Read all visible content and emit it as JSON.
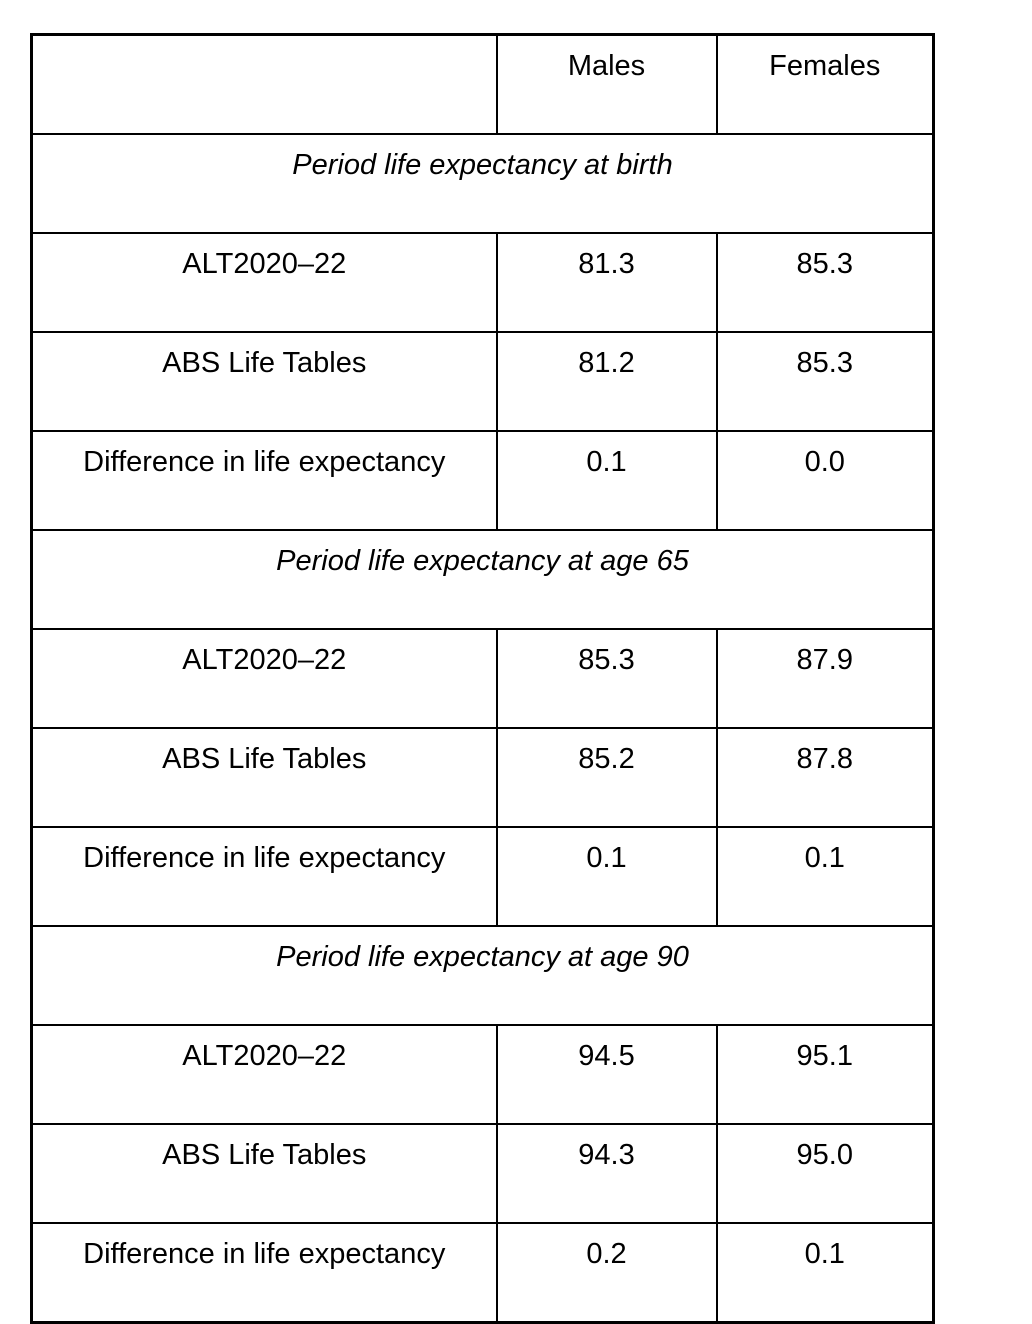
{
  "colors": {
    "background": "#ffffff",
    "border": "#000000",
    "text": "#000000"
  },
  "table": {
    "columns": [
      "",
      "Males",
      "Females"
    ],
    "sections": [
      {
        "title": "Period life expectancy at birth",
        "rows": [
          {
            "label": "ALT2020–22",
            "males": "81.3",
            "females": "85.3"
          },
          {
            "label": "ABS Life Tables",
            "males": "81.2",
            "females": "85.3"
          },
          {
            "label": "Difference in life expectancy",
            "males": "0.1",
            "females": "0.0"
          }
        ]
      },
      {
        "title": "Period life expectancy at age 65",
        "rows": [
          {
            "label": "ALT2020–22",
            "males": "85.3",
            "females": "87.9"
          },
          {
            "label": "ABS Life Tables",
            "males": "85.2",
            "females": "87.8"
          },
          {
            "label": "Difference in life expectancy",
            "males": "0.1",
            "females": "0.1"
          }
        ]
      },
      {
        "title": "Period life expectancy at age 90",
        "rows": [
          {
            "label": "ALT2020–22",
            "males": "94.5",
            "females": "95.1"
          },
          {
            "label": "ABS Life Tables",
            "males": "94.3",
            "females": "95.0"
          },
          {
            "label": "Difference in life expectancy",
            "males": "0.2",
            "females": "0.1"
          }
        ]
      }
    ]
  }
}
